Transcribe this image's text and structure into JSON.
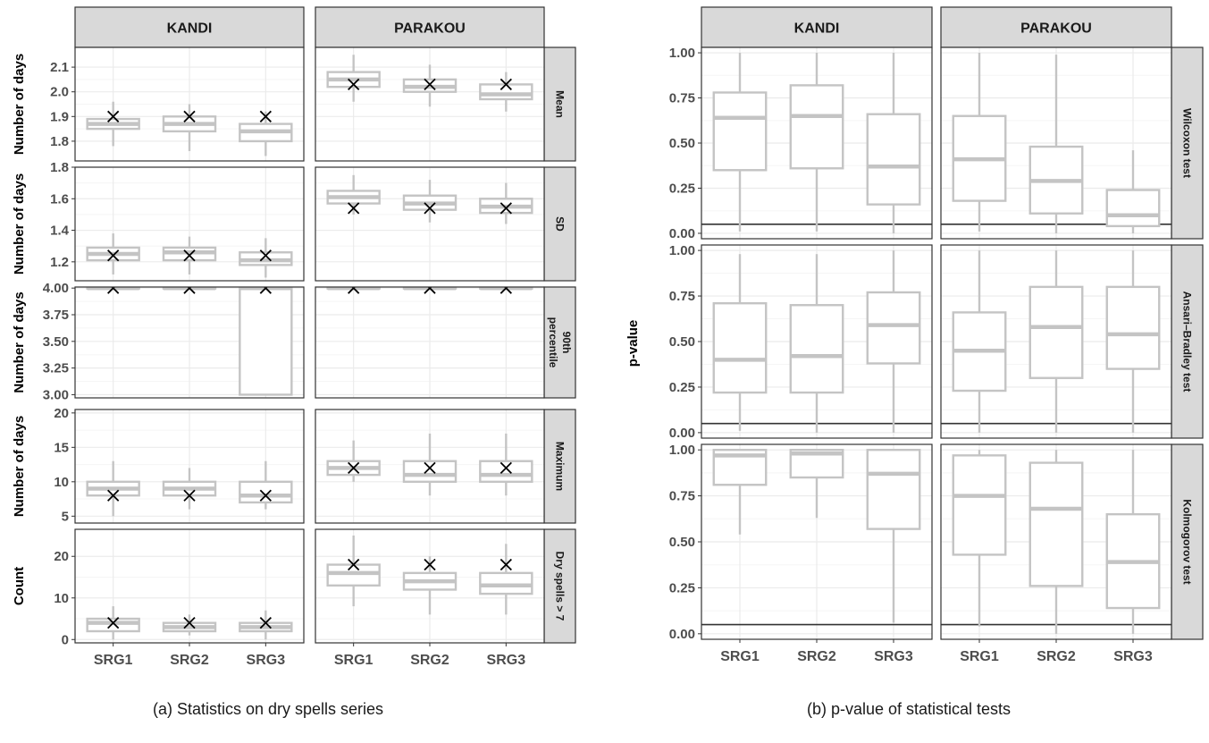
{
  "chart_data": [
    {
      "type": "boxplot",
      "caption": "(a) Statistics on dry spells series",
      "columns": [
        "KANDI",
        "PARAKOU"
      ],
      "categories": [
        "SRG1",
        "SRG2",
        "SRG3"
      ],
      "rows": [
        {
          "label": "Mean",
          "ylabel": "Number of days",
          "ylim": [
            1.72,
            2.18
          ],
          "yticks": [
            1.8,
            1.9,
            2.0,
            2.1
          ],
          "tick_labels": [
            "1.8",
            "1.9",
            "2.0",
            "2.1"
          ],
          "panels": [
            {
              "column": "KANDI",
              "boxes": [
                {
                  "wmin": 1.78,
                  "q1": 1.85,
                  "median": 1.87,
                  "q3": 1.89,
                  "wmax": 1.96,
                  "obs": 1.9
                },
                {
                  "wmin": 1.76,
                  "q1": 1.84,
                  "median": 1.87,
                  "q3": 1.9,
                  "wmax": 1.95,
                  "obs": 1.9
                },
                {
                  "wmin": 1.74,
                  "q1": 1.8,
                  "median": 1.84,
                  "q3": 1.87,
                  "wmax": 1.92,
                  "obs": 1.9
                }
              ]
            },
            {
              "column": "PARAKOU",
              "boxes": [
                {
                  "wmin": 1.96,
                  "q1": 2.02,
                  "median": 2.05,
                  "q3": 2.08,
                  "wmax": 2.15,
                  "obs": 2.03
                },
                {
                  "wmin": 1.94,
                  "q1": 2.0,
                  "median": 2.02,
                  "q3": 2.05,
                  "wmax": 2.11,
                  "obs": 2.03
                },
                {
                  "wmin": 1.92,
                  "q1": 1.97,
                  "median": 1.99,
                  "q3": 2.03,
                  "wmax": 2.08,
                  "obs": 2.03
                }
              ]
            }
          ]
        },
        {
          "label": "SD",
          "ylabel": "Number of days",
          "ylim": [
            1.08,
            1.8
          ],
          "yticks": [
            1.2,
            1.4,
            1.6,
            1.8
          ],
          "tick_labels": [
            "1.2",
            "1.4",
            "1.6",
            "1.8"
          ],
          "panels": [
            {
              "column": "KANDI",
              "boxes": [
                {
                  "wmin": 1.12,
                  "q1": 1.21,
                  "median": 1.25,
                  "q3": 1.29,
                  "wmax": 1.38,
                  "obs": 1.24
                },
                {
                  "wmin": 1.12,
                  "q1": 1.21,
                  "median": 1.26,
                  "q3": 1.29,
                  "wmax": 1.36,
                  "obs": 1.24
                },
                {
                  "wmin": 1.1,
                  "q1": 1.18,
                  "median": 1.21,
                  "q3": 1.26,
                  "wmax": 1.35,
                  "obs": 1.24
                }
              ]
            },
            {
              "column": "PARAKOU",
              "boxes": [
                {
                  "wmin": 1.5,
                  "q1": 1.57,
                  "median": 1.61,
                  "q3": 1.65,
                  "wmax": 1.75,
                  "obs": 1.54
                },
                {
                  "wmin": 1.45,
                  "q1": 1.53,
                  "median": 1.57,
                  "q3": 1.62,
                  "wmax": 1.72,
                  "obs": 1.54
                },
                {
                  "wmin": 1.44,
                  "q1": 1.51,
                  "median": 1.55,
                  "q3": 1.6,
                  "wmax": 1.7,
                  "obs": 1.54
                }
              ]
            }
          ]
        },
        {
          "label": "90th percentile",
          "label_lines": [
            "90th",
            "percentile"
          ],
          "ylabel": "Number of days",
          "ylim": [
            2.97,
            4.01
          ],
          "yticks": [
            3.0,
            3.25,
            3.5,
            3.75,
            4.0
          ],
          "tick_labels": [
            "3.00",
            "3.25",
            "3.50",
            "3.75",
            "4.00"
          ],
          "panels": [
            {
              "column": "KANDI",
              "boxes": [
                {
                  "wmin": 4.0,
                  "q1": 4.0,
                  "median": 4.0,
                  "q3": 4.0,
                  "wmax": 4.0,
                  "obs": 4.0
                },
                {
                  "wmin": 4.0,
                  "q1": 4.0,
                  "median": 4.0,
                  "q3": 4.0,
                  "wmax": 4.0,
                  "obs": 4.0
                },
                {
                  "wmin": 3.0,
                  "q1": 3.0,
                  "median": 4.0,
                  "q3": 4.0,
                  "wmax": 4.0,
                  "obs": 4.0
                }
              ]
            },
            {
              "column": "PARAKOU",
              "boxes": [
                {
                  "wmin": 4.0,
                  "q1": 4.0,
                  "median": 4.0,
                  "q3": 4.0,
                  "wmax": 4.0,
                  "obs": 4.0
                },
                {
                  "wmin": 4.0,
                  "q1": 4.0,
                  "median": 4.0,
                  "q3": 4.0,
                  "wmax": 4.0,
                  "obs": 4.0
                },
                {
                  "wmin": 4.0,
                  "q1": 4.0,
                  "median": 4.0,
                  "q3": 4.0,
                  "wmax": 4.0,
                  "obs": 4.0
                }
              ]
            }
          ]
        },
        {
          "label": "Maximum",
          "ylabel": "Number of days",
          "ylim": [
            4,
            20.5
          ],
          "yticks": [
            5,
            10,
            15,
            20
          ],
          "tick_labels": [
            "5",
            "10",
            "15",
            "20"
          ],
          "panels": [
            {
              "column": "KANDI",
              "boxes": [
                {
                  "wmin": 5,
                  "q1": 8,
                  "median": 9,
                  "q3": 10,
                  "wmax": 13,
                  "obs": 8
                },
                {
                  "wmin": 6,
                  "q1": 8,
                  "median": 9,
                  "q3": 10,
                  "wmax": 12,
                  "obs": 8
                },
                {
                  "wmin": 6,
                  "q1": 7,
                  "median": 8,
                  "q3": 10,
                  "wmax": 13,
                  "obs": 8
                }
              ]
            },
            {
              "column": "PARAKOU",
              "boxes": [
                {
                  "wmin": 10,
                  "q1": 11,
                  "median": 12,
                  "q3": 13,
                  "wmax": 16,
                  "obs": 12
                },
                {
                  "wmin": 8,
                  "q1": 10,
                  "median": 11,
                  "q3": 13,
                  "wmax": 17,
                  "obs": 12
                },
                {
                  "wmin": 8,
                  "q1": 10,
                  "median": 11,
                  "q3": 13,
                  "wmax": 17,
                  "obs": 12
                }
              ]
            }
          ]
        },
        {
          "label": "Dry spells > 7",
          "ylabel": "Count",
          "ylim": [
            -0.8,
            26.5
          ],
          "yticks": [
            0,
            10,
            20
          ],
          "tick_labels": [
            "0",
            "10",
            "20"
          ],
          "panels": [
            {
              "column": "KANDI",
              "boxes": [
                {
                  "wmin": 0,
                  "q1": 2,
                  "median": 4,
                  "q3": 5,
                  "wmax": 8,
                  "obs": 4
                },
                {
                  "wmin": 1,
                  "q1": 2,
                  "median": 3,
                  "q3": 4,
                  "wmax": 6,
                  "obs": 4
                },
                {
                  "wmin": 0,
                  "q1": 2,
                  "median": 3,
                  "q3": 4,
                  "wmax": 7,
                  "obs": 4
                }
              ]
            },
            {
              "column": "PARAKOU",
              "boxes": [
                {
                  "wmin": 8,
                  "q1": 13,
                  "median": 16,
                  "q3": 18,
                  "wmax": 25,
                  "obs": 18
                },
                {
                  "wmin": 6,
                  "q1": 12,
                  "median": 14,
                  "q3": 16,
                  "wmax": 20,
                  "obs": 18
                },
                {
                  "wmin": 6,
                  "q1": 11,
                  "median": 13,
                  "q3": 16,
                  "wmax": 23,
                  "obs": 18
                }
              ]
            }
          ]
        }
      ]
    },
    {
      "type": "boxplot",
      "caption": "(b) p-value of statistical tests",
      "columns": [
        "KANDI",
        "PARAKOU"
      ],
      "categories": [
        "SRG1",
        "SRG2",
        "SRG3"
      ],
      "ylabel": "p-value",
      "reference_line": 0.05,
      "rows": [
        {
          "label": "Wilcoxon test",
          "ylim": [
            -0.03,
            1.03
          ],
          "yticks": [
            0,
            0.25,
            0.5,
            0.75,
            1.0
          ],
          "tick_labels": [
            "0.00",
            "0.25",
            "0.50",
            "0.75",
            "1.00"
          ],
          "panels": [
            {
              "column": "KANDI",
              "boxes": [
                {
                  "wmin": 0.01,
                  "q1": 0.35,
                  "median": 0.64,
                  "q3": 0.78,
                  "wmax": 1.0
                },
                {
                  "wmin": 0.01,
                  "q1": 0.36,
                  "median": 0.65,
                  "q3": 0.82,
                  "wmax": 1.0
                },
                {
                  "wmin": 0.0,
                  "q1": 0.16,
                  "median": 0.37,
                  "q3": 0.66,
                  "wmax": 1.0
                }
              ]
            },
            {
              "column": "PARAKOU",
              "boxes": [
                {
                  "wmin": 0.01,
                  "q1": 0.18,
                  "median": 0.41,
                  "q3": 0.65,
                  "wmax": 1.0
                },
                {
                  "wmin": 0.0,
                  "q1": 0.11,
                  "median": 0.29,
                  "q3": 0.48,
                  "wmax": 0.99
                },
                {
                  "wmin": 0.0,
                  "q1": 0.04,
                  "median": 0.1,
                  "q3": 0.24,
                  "wmax": 0.46
                }
              ]
            }
          ]
        },
        {
          "label": "Ansari–Bradley test",
          "ylim": [
            -0.03,
            1.03
          ],
          "yticks": [
            0,
            0.25,
            0.5,
            0.75,
            1.0
          ],
          "tick_labels": [
            "0.00",
            "0.25",
            "0.50",
            "0.75",
            "1.00"
          ],
          "panels": [
            {
              "column": "KANDI",
              "boxes": [
                {
                  "wmin": 0.01,
                  "q1": 0.22,
                  "median": 0.4,
                  "q3": 0.71,
                  "wmax": 0.98
                },
                {
                  "wmin": 0.0,
                  "q1": 0.22,
                  "median": 0.42,
                  "q3": 0.7,
                  "wmax": 0.98
                },
                {
                  "wmin": 0.0,
                  "q1": 0.38,
                  "median": 0.59,
                  "q3": 0.77,
                  "wmax": 1.0
                }
              ]
            },
            {
              "column": "PARAKOU",
              "boxes": [
                {
                  "wmin": 0.0,
                  "q1": 0.23,
                  "median": 0.45,
                  "q3": 0.66,
                  "wmax": 1.0
                },
                {
                  "wmin": 0.0,
                  "q1": 0.3,
                  "median": 0.58,
                  "q3": 0.8,
                  "wmax": 1.0
                },
                {
                  "wmin": 0.0,
                  "q1": 0.35,
                  "median": 0.54,
                  "q3": 0.8,
                  "wmax": 1.0
                }
              ]
            }
          ]
        },
        {
          "label": "Kolmogorov test",
          "ylim": [
            -0.03,
            1.03
          ],
          "yticks": [
            0,
            0.25,
            0.5,
            0.75,
            1.0
          ],
          "tick_labels": [
            "0.00",
            "0.25",
            "0.50",
            "0.75",
            "1.00"
          ],
          "panels": [
            {
              "column": "KANDI",
              "boxes": [
                {
                  "wmin": 0.54,
                  "q1": 0.81,
                  "median": 0.97,
                  "q3": 1.0,
                  "wmax": 1.0
                },
                {
                  "wmin": 0.63,
                  "q1": 0.85,
                  "median": 0.98,
                  "q3": 1.0,
                  "wmax": 1.0
                },
                {
                  "wmin": 0.06,
                  "q1": 0.57,
                  "median": 0.87,
                  "q3": 1.0,
                  "wmax": 1.0
                }
              ]
            },
            {
              "column": "PARAKOU",
              "boxes": [
                {
                  "wmin": 0.04,
                  "q1": 0.43,
                  "median": 0.75,
                  "q3": 0.97,
                  "wmax": 1.0
                },
                {
                  "wmin": 0.0,
                  "q1": 0.26,
                  "median": 0.68,
                  "q3": 0.93,
                  "wmax": 1.0
                },
                {
                  "wmin": 0.0,
                  "q1": 0.14,
                  "median": 0.39,
                  "q3": 0.65,
                  "wmax": 1.0
                }
              ]
            }
          ]
        }
      ]
    }
  ],
  "colors": {
    "box_stroke": "#c4c4c4",
    "median": "#c4c4c4",
    "grid_major": "#ebebeb",
    "grid_minor": "#f5f5f5",
    "panel_border": "#333333",
    "strip_fill": "#d9d9d9",
    "marker": "#000000",
    "ref_line": "#333333"
  },
  "marker_symbol": "×"
}
